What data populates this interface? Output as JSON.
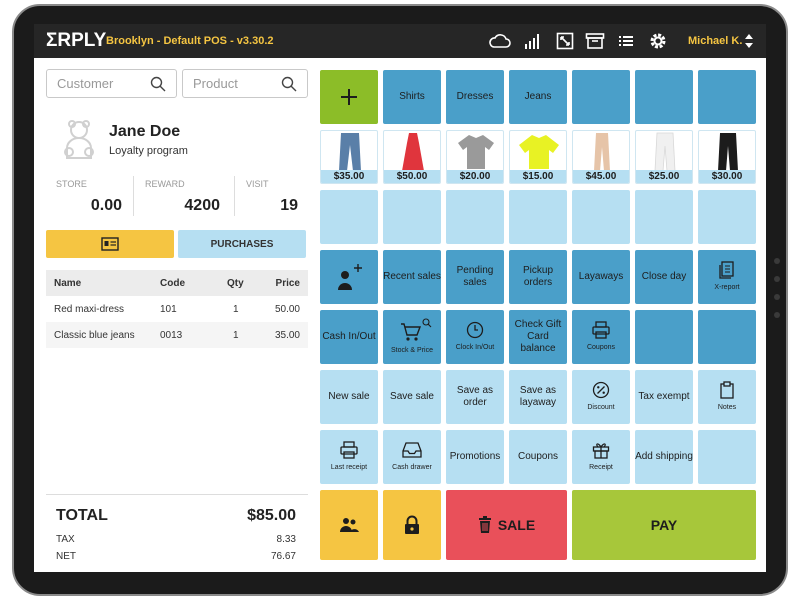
{
  "topbar": {
    "logo": "ΣRPLY",
    "store_title": "Brooklyn - Default POS - v3.30.2",
    "user": "Michael K.",
    "icons": [
      "cloud-icon",
      "signal-icon",
      "resize-icon",
      "archive-icon",
      "list-icon",
      "gear-icon"
    ],
    "accent": "#f5c542"
  },
  "search": {
    "customer_placeholder": "Customer",
    "product_placeholder": "Product"
  },
  "customer": {
    "name": "Jane Doe",
    "program": "Loyalty program",
    "stats": [
      {
        "label": "STORE",
        "value": "0.00"
      },
      {
        "label": "REWARD",
        "value": "4200"
      },
      {
        "label": "VISIT",
        "value": "19"
      }
    ],
    "purchases_label": "PURCHASES"
  },
  "cart": {
    "headers": {
      "name": "Name",
      "code": "Code",
      "qty": "Qty",
      "price": "Price"
    },
    "rows": [
      {
        "name": "Red maxi-dress",
        "code": "101",
        "qty": "1",
        "price": "50.00"
      },
      {
        "name": "Classic blue jeans",
        "code": "0013",
        "qty": "1",
        "price": "35.00"
      }
    ]
  },
  "totals": {
    "total_label": "TOTAL",
    "total_value": "$85.00",
    "tax_label": "TAX",
    "tax_value": "8.33",
    "net_label": "NET",
    "net_value": "76.67"
  },
  "categories": [
    "Shirts",
    "Dresses",
    "Jeans"
  ],
  "products": [
    {
      "price": "$35.00",
      "icon": "jeans-icon",
      "color": "#5a7fa8"
    },
    {
      "price": "$50.00",
      "icon": "red-dress-icon",
      "color": "#e0353d"
    },
    {
      "price": "$20.00",
      "icon": "grey-shirt-icon",
      "color": "#9a9a9a"
    },
    {
      "price": "$15.00",
      "icon": "yellow-top-icon",
      "color": "#e8f224"
    },
    {
      "price": "$45.00",
      "icon": "beige-pants-icon",
      "color": "#e6c4a8"
    },
    {
      "price": "$25.00",
      "icon": "white-pants-icon",
      "color": "#f0f0f0"
    },
    {
      "price": "$30.00",
      "icon": "black-pants-icon",
      "color": "#1c1c1c"
    }
  ],
  "functions": {
    "recent_sales": "Recent sales",
    "pending_sales": "Pending sales",
    "pickup_orders": "Pickup orders",
    "layaways": "Layaways",
    "close_day": "Close day",
    "x_report": "X-report",
    "cash_in_out": "Cash In/Out",
    "stock_price": "Stock & Price",
    "clock_in_out": "Clock In/Out",
    "check_gift_card": "Check Gift Card balance",
    "coupons_small": "Coupons",
    "new_sale": "New sale",
    "save_sale": "Save sale",
    "save_as_order": "Save as order",
    "save_as_layaway": "Save as layaway",
    "discount": "Discount",
    "tax_exempt": "Tax exempt",
    "notes": "Notes",
    "last_receipt": "Last receipt",
    "cash_drawer": "Cash drawer",
    "promotions": "Promotions",
    "coupons": "Coupons",
    "receipt": "Receipt",
    "add_shipping": "Add shipping",
    "sale": "SALE",
    "pay": "PAY"
  }
}
